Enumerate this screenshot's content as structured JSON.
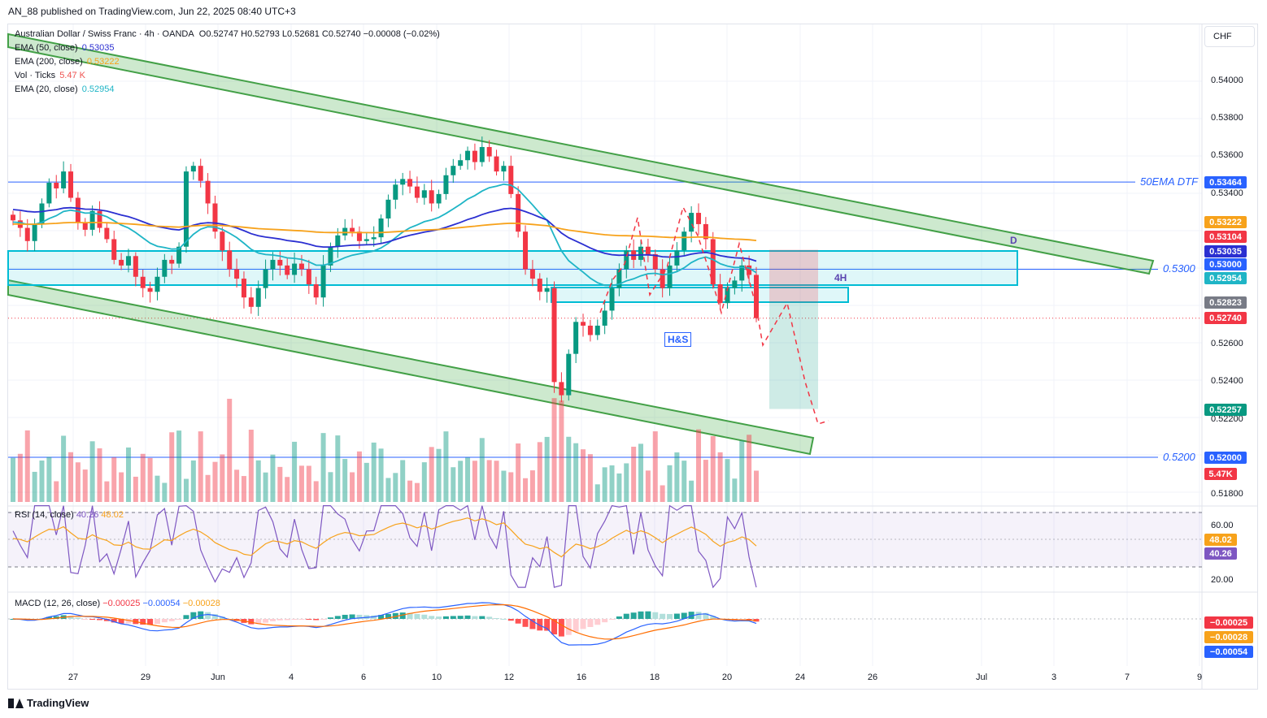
{
  "header": {
    "credit": "AN_88 published on TradingView.com, Jun 22, 2025 08:40 UTC+3"
  },
  "legend": {
    "symbol": "Australian Dollar / Swiss Franc · 4h · OANDA",
    "ohlc": "O0.52747 H0.52793 L0.52681 C0.52740 −0.00008 (−0.02%)",
    "ema50": {
      "label": "EMA (50, close)",
      "value": "0.53035",
      "color": "#2b2fd1"
    },
    "ema200": {
      "label": "EMA (200, close)",
      "value": "0.53222",
      "color": "#f7a21b"
    },
    "vol": {
      "label": "Vol · Ticks",
      "value": "5.47 K",
      "color": "#ef5350"
    },
    "ema20": {
      "label": "EMA (20, close)",
      "value": "0.52954",
      "color": "#1fb5c6"
    }
  },
  "currency_button": "CHF",
  "price_axis": [
    "0.54000",
    "0.53800",
    "0.53600",
    "0.53400",
    "0.52600",
    "0.52400",
    "0.52200",
    "0.51800"
  ],
  "price_tags": [
    {
      "text": "0.53464",
      "color": "#2962ff"
    },
    {
      "text": "0.53222",
      "color": "#f7a21b"
    },
    {
      "text": "0.53104",
      "color": "#f23645"
    },
    {
      "text": "0.53035",
      "color": "#2b2fd1"
    },
    {
      "text": "0.53000",
      "color": "#2962ff"
    },
    {
      "text": "0.52954",
      "color": "#1fb5c6"
    },
    {
      "text": "0.52823",
      "color": "#787b86"
    },
    {
      "text": "0.52740",
      "color": "#f23645"
    },
    {
      "text": "0.52257",
      "color": "#089981"
    },
    {
      "text": "0.52000",
      "color": "#2962ff"
    },
    {
      "text": "5.47K",
      "color": "#f23645"
    }
  ],
  "annotations": {
    "ema_dtf": "50EMA DTF",
    "level_5300": "0.5300",
    "level_5200": "0.5200",
    "hs": "H&S",
    "point_d": "D",
    "tf_4h": "4H"
  },
  "rsi": {
    "label": "RSI (14, close)",
    "value": "40.26",
    "ma": "48.02",
    "axis": [
      "60.00",
      "20.00"
    ],
    "tags": [
      {
        "text": "48.02",
        "color": "#f7a21b"
      },
      {
        "text": "40.26",
        "color": "#7e57c2"
      }
    ]
  },
  "macd": {
    "label": "MACD (12, 26, close)",
    "hist": "−0.00025",
    "macd": "−0.00054",
    "signal": "−0.00028",
    "tags": [
      {
        "text": "−0.00025",
        "color": "#f23645"
      },
      {
        "text": "−0.00028",
        "color": "#f7a21b"
      },
      {
        "text": "−0.00054",
        "color": "#2962ff"
      }
    ]
  },
  "time_axis": [
    "27",
    "29",
    "Jun",
    "4",
    "6",
    "10",
    "12",
    "16",
    "18",
    "20",
    "24",
    "26",
    "Jul",
    "3",
    "7",
    "9"
  ],
  "footer": {
    "brand": "TradingView"
  },
  "chart_data": {
    "type": "candlestick",
    "title": "Australian Dollar / Swiss Franc · 4h · OANDA",
    "ylim": [
      0.5175,
      0.543
    ],
    "levels": [
      {
        "price": 0.53464,
        "label": "50EMA DTF"
      },
      {
        "price": 0.53,
        "label": "0.5300"
      },
      {
        "price": 0.52,
        "label": "0.5200"
      }
    ],
    "close_path": [
      0.5326,
      0.5322,
      0.5315,
      0.5324,
      0.5335,
      0.5346,
      0.5343,
      0.5352,
      0.5338,
      0.5325,
      0.5321,
      0.5331,
      0.5322,
      0.5316,
      0.5305,
      0.5302,
      0.5307,
      0.5296,
      0.529,
      0.5288,
      0.5296,
      0.5305,
      0.5303,
      0.5312,
      0.5352,
      0.5355,
      0.5347,
      0.5335,
      0.532,
      0.531,
      0.53,
      0.5295,
      0.5285,
      0.528,
      0.529,
      0.53,
      0.5305,
      0.5302,
      0.5297,
      0.5303,
      0.53,
      0.5292,
      0.5285,
      0.5302,
      0.5312,
      0.5318,
      0.5322,
      0.532,
      0.5315,
      0.5316,
      0.5317,
      0.5327,
      0.5337,
      0.5345,
      0.5348,
      0.5344,
      0.5338,
      0.5342,
      0.5335,
      0.534,
      0.535,
      0.5355,
      0.5358,
      0.5363,
      0.5357,
      0.5365,
      0.536,
      0.5352,
      0.5355,
      0.534,
      0.532,
      0.53,
      0.5295,
      0.5288,
      0.529,
      0.524,
      0.5233,
      0.5255,
      0.5272,
      0.527,
      0.5265,
      0.527,
      0.5278,
      0.529,
      0.53,
      0.531,
      0.5305,
      0.5312,
      0.5308,
      0.53,
      0.529,
      0.5302,
      0.531,
      0.532,
      0.533,
      0.5324,
      0.5316,
      0.5292,
      0.5282,
      0.529,
      0.5294,
      0.5302,
      0.5297,
      0.5274
    ],
    "ema20": 0.52954,
    "ema50": 0.53035,
    "ema200": 0.53222,
    "projection": {
      "entry": 0.52823,
      "stop": 0.53104,
      "target": 0.52257
    }
  }
}
